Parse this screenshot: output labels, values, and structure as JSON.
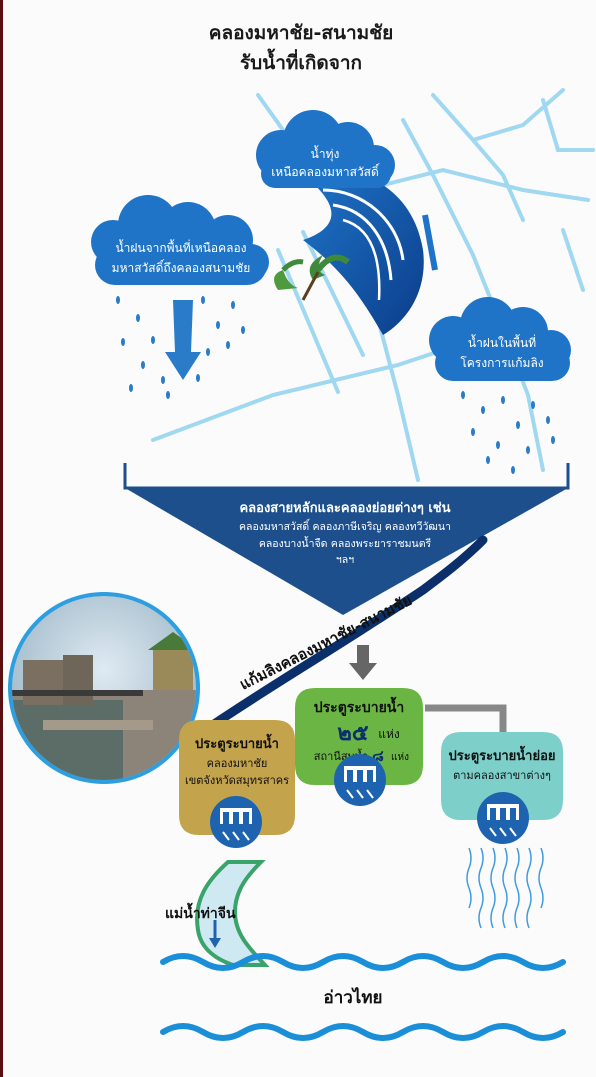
{
  "header": {
    "title_line1": "คลองมหาชัย-สนามชัย",
    "title_line2": "รับน้ำที่เกิดจาก"
  },
  "clouds": {
    "tide": [
      "น้ำทุ่ง",
      "เหนือคลองมหาสวัสดิ์"
    ],
    "north_rain": [
      "น้ำฝนจากพื้นที่เหนือคลอง",
      "มหาสวัสดิ์ถึงคลองสนามชัย"
    ],
    "local_rain": [
      "น้ำฝนในพื้นที่",
      "โครงการแก้มลิง"
    ]
  },
  "funnel": {
    "lines": [
      "คลองสายหลักและคลองย่อยต่างๆ เช่น",
      "คลองมหาสวัสดิ์ คลองภาษีเจริญ คลองทวีวัฒนา",
      "คลองบางน้ำจืด คลองพระยาราชมนตรี",
      "ฯลฯ"
    ]
  },
  "canal_label": "แก้มลิงคลองมหาชัย-สนามชัย",
  "gates": {
    "left": [
      "ประตูระบายน้ำ",
      "คลองมหาชัย",
      "เขตจังหวัดสมุทรสาคร"
    ],
    "center_title": "ประตูระบายน้ำ",
    "center_count": "๒๕",
    "center_unit": "แห่ง",
    "center_pump_label": "สถานีสูบน้ำ",
    "center_pump_count": "๘",
    "center_pump_unit": "แห่ง",
    "right": [
      "ประตูระบายน้ำย่อย",
      "ตามคลองสาขาต่างๆ"
    ]
  },
  "river_label": "แม่น้ำท่าจีน",
  "sea_label": "อ่าวไทย",
  "colors": {
    "cloud": "#1f74c8",
    "funnel": "#1c4f8c",
    "canal": "#9fd8f0",
    "gate_left": "#c3a34c",
    "gate_center": "#6ab543",
    "gate_right": "#7dcfc9",
    "water": "#1a8fd8"
  }
}
